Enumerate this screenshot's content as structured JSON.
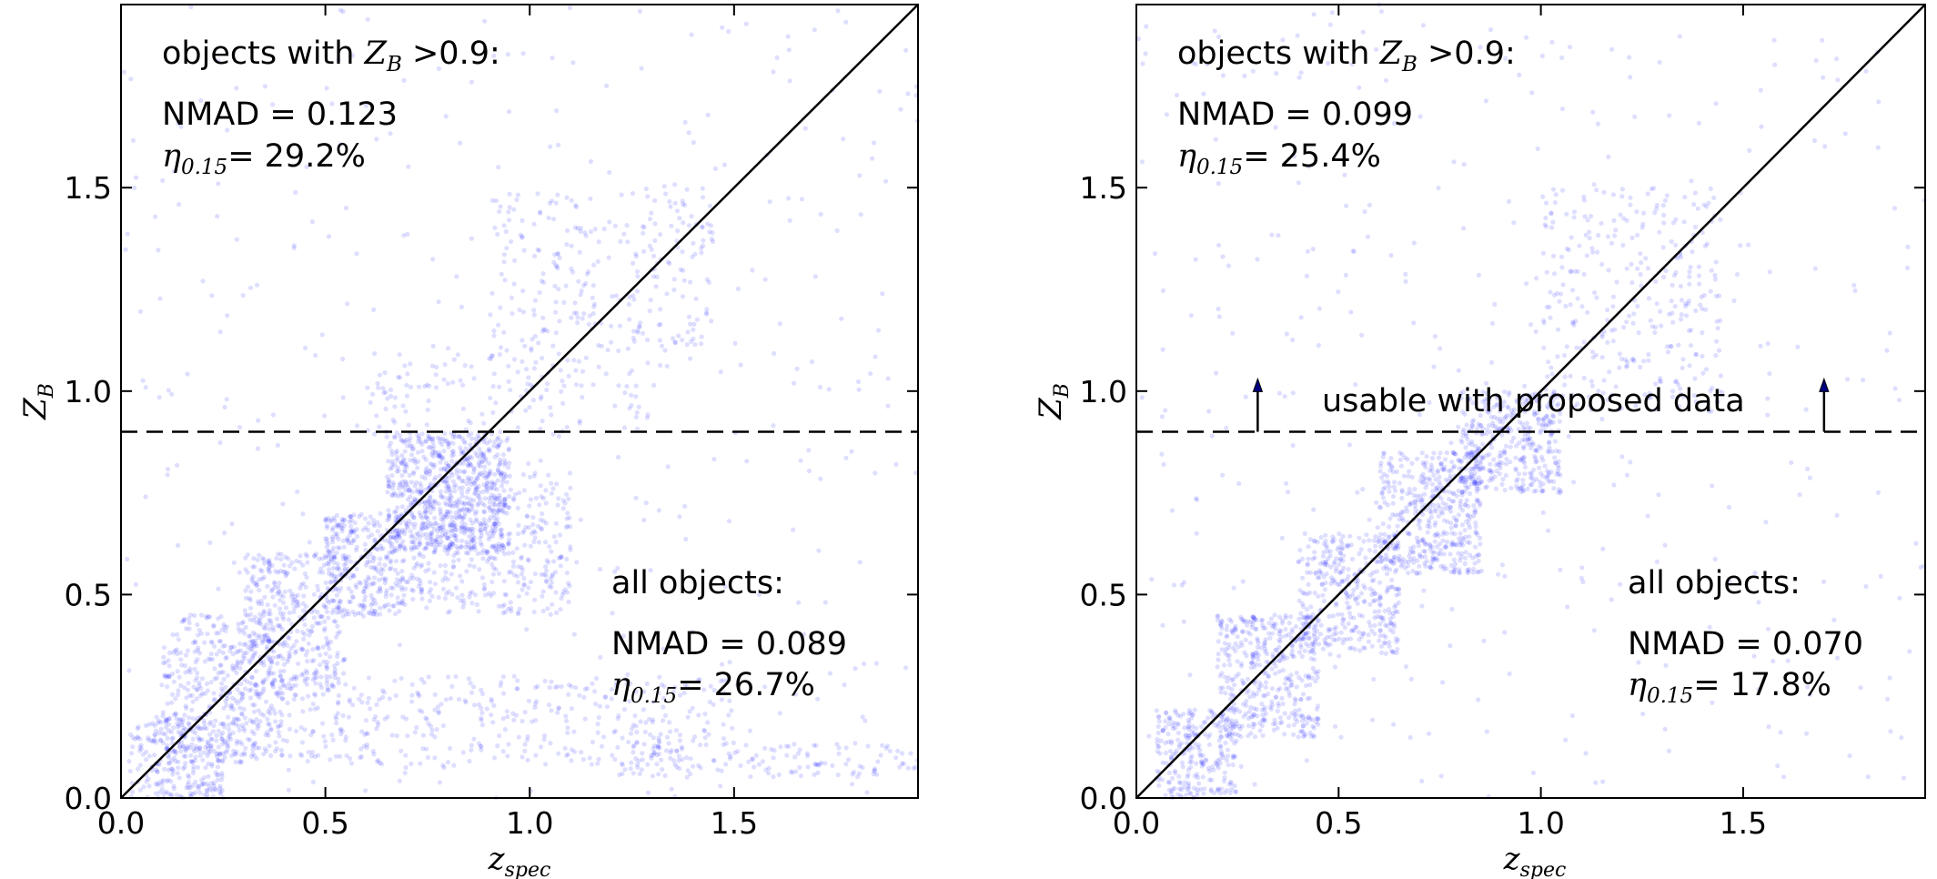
{
  "chart_data": [
    {
      "type": "scatter",
      "xlabel": "z",
      "xlabel_sub": "spec",
      "ylabel": "Z",
      "ylabel_sub": "B",
      "xlim": [
        0.0,
        1.95
      ],
      "ylim": [
        0.0,
        1.95
      ],
      "xticks": [
        "0.0",
        "0.5",
        "1.0",
        "1.5"
      ],
      "yticks": [
        "0.0",
        "0.5",
        "1.0",
        "1.5"
      ],
      "grid": false,
      "point_color": "#0000ff",
      "reference_lines": [
        {
          "kind": "diagonal",
          "from": [
            0,
            0
          ],
          "to": [
            1.95,
            1.95
          ],
          "style": "solid"
        },
        {
          "kind": "horizontal",
          "y": 0.9,
          "style": "dashed"
        }
      ],
      "annotations": {
        "upper": {
          "header_pre": "objects with ",
          "header_var": "Z",
          "header_sub": "B",
          "header_post": " >0.9:",
          "nmad": "NMAD = 0.123",
          "eta_sub": "0.15",
          "eta": "= 29.2%"
        },
        "lower": {
          "header": "all objects:",
          "nmad": "NMAD = 0.089",
          "eta_sub": "0.15",
          "eta": "= 26.7%"
        }
      },
      "series": [
        {
          "label": "",
          "clusters": [
            {
              "x": [
                0.02,
                0.25
              ],
              "y": [
                0.0,
                0.2
              ],
              "n": 260
            },
            {
              "x": [
                0.1,
                0.4
              ],
              "y": [
                0.1,
                0.45
              ],
              "n": 420
            },
            {
              "x": [
                0.3,
                0.55
              ],
              "y": [
                0.25,
                0.6
              ],
              "n": 380
            },
            {
              "x": [
                0.5,
                0.7
              ],
              "y": [
                0.45,
                0.7
              ],
              "n": 320
            },
            {
              "x": [
                0.65,
                0.95
              ],
              "y": [
                0.6,
                0.9
              ],
              "n": 680
            },
            {
              "x": [
                0.7,
                1.1
              ],
              "y": [
                0.45,
                0.8
              ],
              "n": 420
            },
            {
              "x": [
                0.6,
                1.3
              ],
              "y": [
                0.9,
                1.1
              ],
              "n": 140
            },
            {
              "x": [
                0.9,
                1.45
              ],
              "y": [
                1.1,
                1.5
              ],
              "n": 260
            },
            {
              "x": [
                0.25,
                1.5
              ],
              "y": [
                0.08,
                0.3
              ],
              "n": 420
            },
            {
              "x": [
                1.2,
                1.95
              ],
              "y": [
                0.05,
                0.14
              ],
              "n": 140
            },
            {
              "x": [
                0.0,
                1.95
              ],
              "y": [
                0.0,
                1.95
              ],
              "n": 380
            }
          ]
        }
      ]
    },
    {
      "type": "scatter",
      "xlabel": "z",
      "xlabel_sub": "spec",
      "ylabel": "Z",
      "ylabel_sub": "B",
      "xlim": [
        0.0,
        1.95
      ],
      "ylim": [
        0.0,
        1.95
      ],
      "xticks": [
        "0.0",
        "0.5",
        "1.0",
        "1.5"
      ],
      "yticks": [
        "0.0",
        "0.5",
        "1.0",
        "1.5"
      ],
      "grid": false,
      "point_color": "#0000ff",
      "reference_lines": [
        {
          "kind": "diagonal",
          "from": [
            0,
            0
          ],
          "to": [
            1.95,
            1.95
          ],
          "style": "solid"
        },
        {
          "kind": "horizontal",
          "y": 0.9,
          "style": "dashed"
        }
      ],
      "arrows": [
        {
          "x": 0.3,
          "y_from": 0.9,
          "y_to": 1.03
        },
        {
          "x": 1.7,
          "y_from": 0.9,
          "y_to": 1.03
        }
      ],
      "middle_label": "usable with proposed data",
      "middle_label_pos": [
        0.45,
        0.93
      ],
      "annotations": {
        "upper": {
          "header_pre": "objects with ",
          "header_var": "Z",
          "header_sub": "B",
          "header_post": " >0.9:",
          "nmad": "NMAD = 0.099",
          "eta_sub": "0.15",
          "eta": "= 25.4%"
        },
        "lower": {
          "header": "all objects:",
          "nmad": "NMAD = 0.070",
          "eta_sub": "0.15",
          "eta": "= 17.8%"
        }
      },
      "series": [
        {
          "label": "",
          "clusters": [
            {
              "x": [
                0.05,
                0.25
              ],
              "y": [
                0.0,
                0.22
              ],
              "n": 260
            },
            {
              "x": [
                0.2,
                0.45
              ],
              "y": [
                0.15,
                0.45
              ],
              "n": 420
            },
            {
              "x": [
                0.4,
                0.65
              ],
              "y": [
                0.35,
                0.65
              ],
              "n": 360
            },
            {
              "x": [
                0.6,
                0.85
              ],
              "y": [
                0.55,
                0.85
              ],
              "n": 460
            },
            {
              "x": [
                0.8,
                1.05
              ],
              "y": [
                0.75,
                1.0
              ],
              "n": 380
            },
            {
              "x": [
                1.0,
                1.45
              ],
              "y": [
                0.95,
                1.5
              ],
              "n": 300
            },
            {
              "x": [
                0.0,
                1.95
              ],
              "y": [
                0.0,
                1.95
              ],
              "n": 380
            }
          ]
        }
      ]
    }
  ]
}
